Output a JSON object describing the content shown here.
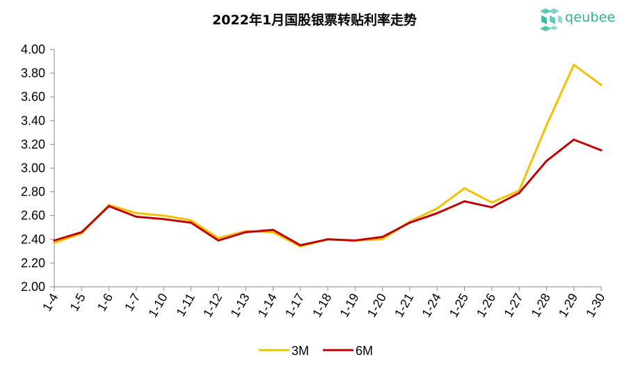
{
  "chart_data": {
    "type": "line",
    "title": "2022年1月国股银票转贴利率走势",
    "categories": [
      "1-4",
      "1-5",
      "1-6",
      "1-7",
      "1-10",
      "1-11",
      "1-12",
      "1-13",
      "1-14",
      "1-17",
      "1-18",
      "1-19",
      "1-20",
      "1-21",
      "1-24",
      "1-25",
      "1-26",
      "1-27",
      "1-28",
      "1-29",
      "1-30"
    ],
    "series": [
      {
        "name": "3M",
        "color": "#f5c000",
        "values": [
          2.37,
          2.45,
          2.69,
          2.62,
          2.6,
          2.56,
          2.41,
          2.47,
          2.46,
          2.34,
          2.4,
          2.39,
          2.4,
          2.55,
          2.66,
          2.83,
          2.71,
          2.81,
          3.36,
          3.87,
          3.7
        ]
      },
      {
        "name": "6M",
        "color": "#c00000",
        "values": [
          2.39,
          2.46,
          2.68,
          2.59,
          2.57,
          2.54,
          2.39,
          2.46,
          2.48,
          2.35,
          2.4,
          2.39,
          2.42,
          2.54,
          2.62,
          2.72,
          2.67,
          2.79,
          3.06,
          3.24,
          3.15
        ]
      }
    ],
    "y_ticks": [
      "2.00",
      "2.20",
      "2.40",
      "2.60",
      "2.80",
      "3.00",
      "3.20",
      "3.40",
      "3.60",
      "3.80",
      "4.00"
    ],
    "ylim": [
      2.0,
      4.0
    ],
    "grid": false,
    "legend_position": "bottom-center"
  },
  "logo": {
    "text": "qeubee",
    "icon": "cube-cluster-logo-icon"
  }
}
